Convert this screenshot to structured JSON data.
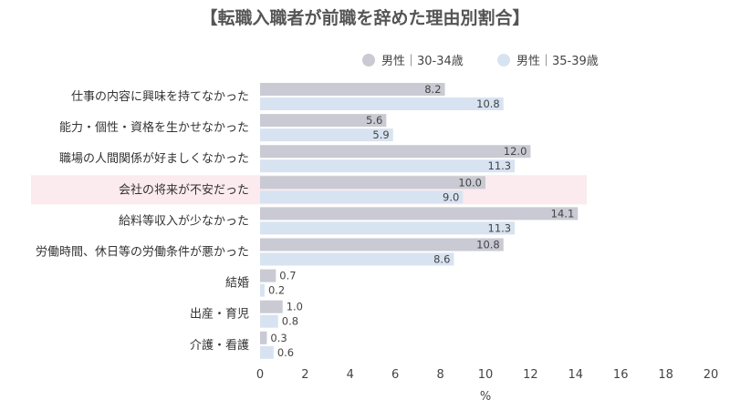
{
  "chart_data": {
    "type": "bar",
    "orientation": "horizontal",
    "title": "【転職入職者が前職を辞めた理由別割合】",
    "xlabel": "%",
    "xlim": [
      0,
      20
    ],
    "xticks": [
      0,
      2,
      4,
      6,
      8,
      10,
      12,
      14,
      16,
      18,
      20
    ],
    "categories": [
      "仕事の内容に興味を持てなかった",
      "能力・個性・資格を生かせなかった",
      "職場の人間関係が好ましくなかった",
      "会社の将来が不安だった",
      "給料等収入が少なかった",
      "労働時間、休日等の労働条件が悪かった",
      "結婚",
      "出産・育児",
      "介護・看護"
    ],
    "series": [
      {
        "name": "男性｜30-34歳",
        "color": "#c9cad3",
        "values": [
          8.2,
          5.6,
          12.0,
          10.0,
          14.1,
          10.8,
          0.7,
          1.0,
          0.3
        ],
        "labels": [
          "8.2",
          "5.6",
          "12.0",
          "10.0",
          "14.1",
          "10.8",
          "0.7",
          "1.0",
          "0.3"
        ]
      },
      {
        "name": "男性｜35-39歳",
        "color": "#d8e3f1",
        "values": [
          10.8,
          5.9,
          11.3,
          9.0,
          11.3,
          8.6,
          0.2,
          0.8,
          0.6
        ],
        "labels": [
          "10.8",
          "5.9",
          "11.3",
          "9.0",
          "11.3",
          "8.6",
          "0.2",
          "0.8",
          "0.6"
        ]
      }
    ],
    "highlight_category": "会社の将来が不安だった",
    "highlight_color": "#fbeaee",
    "legend_position": "top-right",
    "grid": false
  }
}
